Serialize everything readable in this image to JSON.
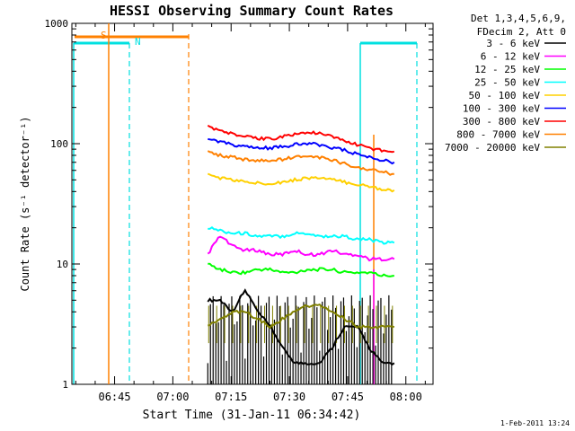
{
  "chart_data": {
    "type": "line",
    "title": "HESSI Observing Summary Count Rates",
    "xlabel": "Start Time (31-Jan-11 06:34:42)",
    "ylabel": "Count Rate (s⁻¹ detector⁻¹)",
    "yscale": "log",
    "ylim": [
      1,
      1000
    ],
    "xlim_minutes_since_0634": [
      0,
      93
    ],
    "x_ticks": [
      "06:45",
      "07:00",
      "07:15",
      "07:30",
      "07:45",
      "08:00"
    ],
    "y_ticks": [
      "1",
      "10",
      "100",
      "1000"
    ],
    "legend_title_lines": [
      "Det 1,3,4,5,6,9,",
      "FDecim 2, Att 0"
    ],
    "legend_position": "right",
    "footer": "1-Feb-2011 13:24",
    "markers": [
      {
        "label": "S",
        "color": "#ff8000"
      },
      {
        "label": "N",
        "color": "#00e0e0"
      }
    ],
    "series": [
      {
        "name": "3 - 6 keV",
        "color": "#000000",
        "values": [
          5,
          5,
          4,
          6,
          4,
          3,
          2,
          1.5,
          1.5,
          1.5,
          2,
          3,
          3,
          2,
          1.5,
          1.5
        ]
      },
      {
        "name": "6 - 12 keV",
        "color": "#ff00ff",
        "values": [
          12,
          17,
          14,
          13,
          13,
          12,
          12,
          13,
          12,
          12,
          13,
          12,
          12,
          11,
          11,
          11
        ]
      },
      {
        "name": "12 - 25 keV",
        "color": "#00ff00",
        "values": [
          10,
          9,
          8.5,
          8.5,
          9,
          9,
          8.5,
          8.5,
          9,
          9,
          9,
          8.5,
          8.5,
          8.5,
          8,
          8
        ]
      },
      {
        "name": "25 - 50 keV",
        "color": "#00ffff",
        "values": [
          20,
          19,
          18,
          18,
          17,
          17,
          17,
          18,
          18,
          17,
          17,
          17,
          16,
          16,
          15,
          15
        ]
      },
      {
        "name": "50 - 100 keV",
        "color": "#ffd000",
        "values": [
          55,
          52,
          50,
          48,
          47,
          47,
          48,
          50,
          52,
          52,
          50,
          48,
          46,
          44,
          42,
          41
        ]
      },
      {
        "name": "100 - 300 keV",
        "color": "#0000ff",
        "values": [
          110,
          103,
          98,
          94,
          92,
          92,
          94,
          98,
          100,
          98,
          93,
          88,
          82,
          77,
          73,
          70
        ]
      },
      {
        "name": "300 - 800 keV",
        "color": "#ff0000",
        "values": [
          140,
          128,
          120,
          114,
          110,
          110,
          114,
          120,
          124,
          121,
          114,
          106,
          98,
          92,
          88,
          86
        ]
      },
      {
        "name": "800 - 7000 keV",
        "color": "#ff8000",
        "values": [
          85,
          80,
          77,
          74,
          72,
          72,
          74,
          77,
          79,
          77,
          73,
          68,
          64,
          61,
          58,
          56
        ]
      },
      {
        "name": "7000 - 20000 keV",
        "color": "#808000",
        "values": [
          3,
          3.5,
          4,
          4,
          3.5,
          3,
          3.5,
          4,
          4.5,
          4.5,
          4,
          3.5,
          3,
          3,
          3,
          3
        ]
      }
    ]
  }
}
